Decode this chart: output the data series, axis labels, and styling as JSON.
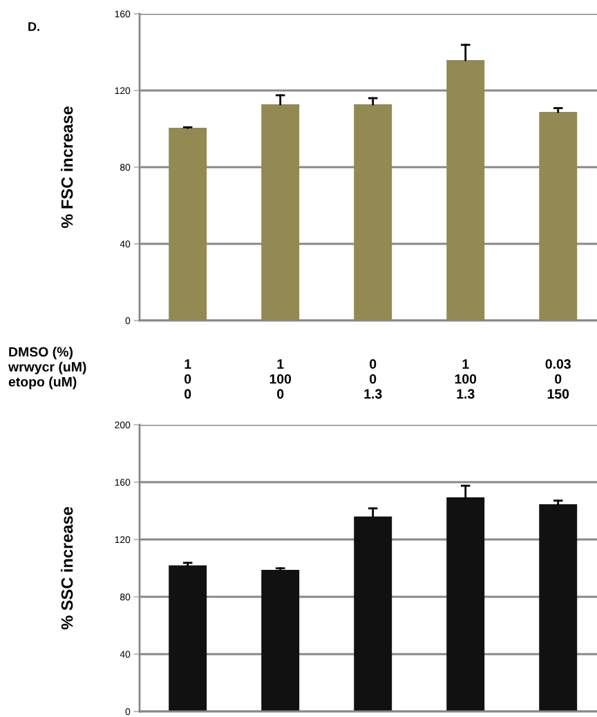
{
  "chart_data": [
    {
      "type": "bar",
      "ylabel": "% FSC increase",
      "xlabel": "DMSO (%)\nwrwycr (uM)\netopo (uM)",
      "annotations": [
        "D."
      ],
      "categories": [
        "1\n0\n0",
        "1\n100\n0",
        "0\n0\n1.3",
        "1\n100\n1.3",
        "0.03\n0\n150"
      ],
      "series": [
        {
          "color": "#938953",
          "values": [
            100.5,
            112.8,
            112.8,
            135.9,
            108.8
          ],
          "errors": [
            [
              100.5,
              100.8
            ],
            [
              112.8,
              117.5
            ],
            [
              112.8,
              116.0
            ],
            [
              135.9,
              143.8
            ],
            [
              108.8,
              110.8
            ]
          ]
        }
      ],
      "ylim": [
        0,
        160
      ],
      "yticks": [
        0,
        40,
        80,
        120,
        160
      ],
      "grid": "y"
    },
    {
      "type": "bar",
      "ylabel": "% SSC increase",
      "categories": [
        null,
        null,
        null,
        null,
        null
      ],
      "series": [
        {
          "color": "#111111",
          "values": [
            101.9,
            98.8,
            136.0,
            149.4,
            144.6
          ],
          "errors": [
            [
              101.9,
              103.7
            ],
            [
              98.8,
              99.9
            ],
            [
              136.0,
              141.7
            ],
            [
              149.4,
              157.5
            ],
            [
              144.6,
              147.1
            ]
          ]
        }
      ],
      "ylim": [
        0,
        200
      ],
      "yticks": [
        0,
        40,
        80,
        120,
        160,
        200
      ],
      "grid": "y",
      "tick_labels": "y"
    }
  ]
}
